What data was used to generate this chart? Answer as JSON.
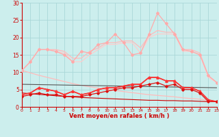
{
  "xlabel": "Vent moyen/en rafales ( km/h )",
  "xlim": [
    0,
    23
  ],
  "ylim": [
    0,
    30
  ],
  "yticks": [
    0,
    5,
    10,
    15,
    20,
    25,
    30
  ],
  "xticks": [
    0,
    1,
    2,
    3,
    4,
    5,
    6,
    7,
    8,
    9,
    10,
    11,
    12,
    13,
    14,
    15,
    16,
    17,
    18,
    19,
    20,
    21,
    22,
    23
  ],
  "background_color": "#cceeed",
  "grid_color": "#aad8d8",
  "lines": [
    {
      "x": [
        0,
        1,
        2,
        3,
        4,
        5,
        6,
        7,
        8,
        9,
        10,
        11,
        12,
        13,
        14,
        15,
        16,
        17,
        18,
        19,
        20,
        21,
        22,
        23
      ],
      "y": [
        10.5,
        13,
        16.5,
        16.5,
        16,
        15,
        13,
        16,
        15.5,
        18,
        18.5,
        21,
        18.5,
        15,
        15.5,
        21,
        27,
        24,
        21,
        16.5,
        16,
        15,
        9,
        7
      ],
      "color": "#ffaaaa",
      "linewidth": 0.9,
      "marker": "D",
      "markersize": 2.0
    },
    {
      "x": [
        0,
        1,
        2,
        3,
        4,
        5,
        6,
        7,
        8,
        9,
        10,
        11,
        12,
        13,
        14,
        15,
        16,
        17,
        18,
        19,
        20,
        21,
        22,
        23
      ],
      "y": [
        10.5,
        13,
        16.5,
        16.5,
        16.5,
        16,
        14,
        14,
        16,
        17,
        18.5,
        18.5,
        19,
        19,
        17,
        20.5,
        22,
        21.5,
        21.5,
        16.5,
        16.5,
        15.5,
        9,
        7
      ],
      "color": "#ffbbbb",
      "linewidth": 0.9,
      "marker": null,
      "markersize": 0
    },
    {
      "x": [
        0,
        1,
        2,
        3,
        4,
        5,
        6,
        7,
        8,
        9,
        10,
        11,
        12,
        13,
        14,
        15,
        16,
        17,
        18,
        19,
        20,
        21,
        22,
        23
      ],
      "y": [
        10.5,
        13,
        16.5,
        16.5,
        16,
        15.5,
        13,
        13,
        15,
        16.5,
        18,
        18,
        18.5,
        18.5,
        15.5,
        20,
        21,
        21,
        21,
        16,
        16,
        15,
        8.5,
        7
      ],
      "color": "#ffcccc",
      "linewidth": 0.9,
      "marker": null,
      "markersize": 0
    },
    {
      "x": [
        0,
        1,
        2,
        3,
        4,
        5,
        6,
        7,
        8,
        9,
        10,
        11,
        12,
        13,
        14,
        15,
        16,
        17,
        18,
        19,
        20,
        21,
        22,
        23
      ],
      "y": [
        10.5,
        9.8,
        9.1,
        8.5,
        7.9,
        7.3,
        6.7,
        6.2,
        5.8,
        5.4,
        5.0,
        4.7,
        4.4,
        4.1,
        3.8,
        3.5,
        3.3,
        3.1,
        2.9,
        2.6,
        2.4,
        2.2,
        1.8,
        1.5
      ],
      "color": "#ffbbbb",
      "linewidth": 0.9,
      "marker": null,
      "markersize": 0
    },
    {
      "x": [
        0,
        23
      ],
      "y": [
        6.5,
        5.5
      ],
      "color": "#555555",
      "linewidth": 0.8,
      "marker": null,
      "markersize": 0
    },
    {
      "x": [
        0,
        1,
        2,
        3,
        4,
        5,
        6,
        7,
        8,
        9,
        10,
        11,
        12,
        13,
        14,
        15,
        16,
        17,
        18,
        19,
        20,
        21,
        22,
        23
      ],
      "y": [
        3.5,
        4.0,
        5.5,
        5.0,
        4.5,
        3.5,
        4.5,
        3.5,
        4.0,
        5.0,
        5.5,
        5.5,
        6.0,
        6.5,
        6.5,
        8.5,
        8.5,
        7.5,
        7.5,
        5.5,
        5.5,
        4.5,
        2.0,
        1.5
      ],
      "color": "#ff3333",
      "linewidth": 1.2,
      "marker": "^",
      "markersize": 2.5
    },
    {
      "x": [
        0,
        1,
        2,
        3,
        4,
        5,
        6,
        7,
        8,
        9,
        10,
        11,
        12,
        13,
        14,
        15,
        16,
        17,
        18,
        19,
        20,
        21,
        22,
        23
      ],
      "y": [
        3.5,
        4.0,
        5.5,
        5.0,
        4.5,
        3.5,
        4.5,
        3.5,
        4.0,
        5.0,
        5.5,
        5.5,
        6.0,
        6.5,
        6.5,
        8.5,
        8.5,
        7.5,
        7.5,
        5.5,
        5.5,
        4.5,
        2.0,
        1.5
      ],
      "color": "#cc0000",
      "linewidth": 0.8,
      "marker": null,
      "markersize": 0
    },
    {
      "x": [
        0,
        1,
        2,
        3,
        4,
        5,
        6,
        7,
        8,
        9,
        10,
        11,
        12,
        13,
        14,
        15,
        16,
        17,
        18,
        19,
        20,
        21,
        22,
        23
      ],
      "y": [
        3.0,
        3.5,
        4.0,
        3.5,
        3.5,
        3.0,
        3.0,
        3.0,
        3.5,
        4.0,
        4.5,
        5.0,
        5.5,
        5.5,
        6.0,
        6.5,
        7.0,
        6.0,
        6.5,
        5.0,
        5.0,
        4.0,
        1.5,
        1.5
      ],
      "color": "#dd1111",
      "linewidth": 0.9,
      "marker": "D",
      "markersize": 1.8
    },
    {
      "x": [
        0,
        1,
        2,
        3,
        4,
        5,
        6,
        7,
        8,
        9,
        10,
        11,
        12,
        13,
        14,
        15,
        16,
        17,
        18,
        19,
        20,
        21,
        22,
        23
      ],
      "y": [
        4.0,
        3.8,
        3.6,
        3.4,
        3.2,
        3.0,
        2.9,
        2.7,
        2.6,
        2.5,
        2.4,
        2.3,
        2.2,
        2.1,
        2.0,
        1.9,
        1.9,
        1.8,
        1.8,
        1.7,
        1.7,
        1.6,
        1.5,
        1.5
      ],
      "color": "#cc0000",
      "linewidth": 0.8,
      "marker": null,
      "markersize": 0
    }
  ]
}
